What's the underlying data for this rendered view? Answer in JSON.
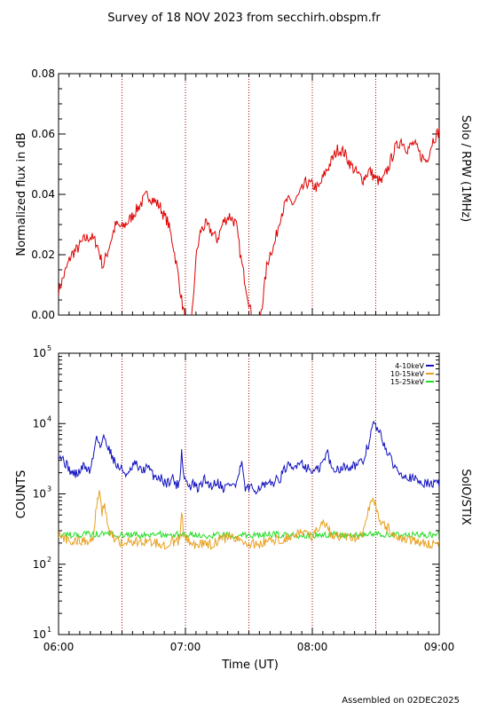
{
  "header": {
    "title": "Survey of 18 NOV 2023 from secchirh.obspm.fr"
  },
  "footer": {
    "assembled": "Assembled on 02DEC2025"
  },
  "colors": {
    "rpw": "#dd0000",
    "ch1": "#1010c0",
    "ch2": "#e8a020",
    "ch3": "#22dd22",
    "dotted": "#aa0000"
  },
  "chart_data": [
    {
      "type": "line",
      "ylabel": "Normalized flux in dB",
      "right_label": "Solo / RPW (1MHz)",
      "ylim": [
        0,
        0.08
      ],
      "y_ticks": [
        "0.00",
        "0.02",
        "0.04",
        "0.06",
        "0.08"
      ],
      "y_tick_values": [
        0,
        0.02,
        0.04,
        0.06,
        0.08
      ],
      "xlim_hours": [
        6.0,
        9.0
      ],
      "dotted_lines_hours": [
        6.5,
        7.0,
        7.5,
        8.0,
        8.5
      ],
      "series": [
        {
          "color": "#dd0000",
          "x": [
            6.0,
            6.05,
            6.1,
            6.15,
            6.2,
            6.25,
            6.3,
            6.35,
            6.4,
            6.45,
            6.5,
            6.55,
            6.6,
            6.65,
            6.7,
            6.75,
            6.8,
            6.83,
            6.86,
            6.9,
            6.94,
            6.97,
            7.0,
            7.02,
            7.04,
            7.06,
            7.08,
            7.12,
            7.16,
            7.2,
            7.25,
            7.3,
            7.35,
            7.4,
            7.44,
            7.48,
            7.52,
            7.55,
            7.58,
            7.61,
            7.64,
            7.67,
            7.7,
            7.75,
            7.8,
            7.85,
            7.9,
            7.95,
            8.0,
            8.05,
            8.1,
            8.15,
            8.2,
            8.25,
            8.3,
            8.35,
            8.4,
            8.45,
            8.5,
            8.55,
            8.6,
            8.65,
            8.7,
            8.75,
            8.8,
            8.85,
            8.9,
            8.95,
            9.0
          ],
          "y": [
            0.008,
            0.014,
            0.02,
            0.022,
            0.025,
            0.026,
            0.024,
            0.016,
            0.023,
            0.03,
            0.029,
            0.031,
            0.034,
            0.037,
            0.04,
            0.038,
            0.036,
            0.033,
            0.031,
            0.024,
            0.014,
            0.005,
            -0.002,
            -0.004,
            -0.002,
            0.003,
            0.018,
            0.028,
            0.03,
            0.028,
            0.025,
            0.031,
            0.033,
            0.03,
            0.018,
            0.009,
            0.0,
            -0.003,
            -0.002,
            0.005,
            0.016,
            0.021,
            0.023,
            0.033,
            0.038,
            0.037,
            0.04,
            0.044,
            0.043,
            0.042,
            0.047,
            0.051,
            0.055,
            0.054,
            0.05,
            0.047,
            0.045,
            0.048,
            0.045,
            0.044,
            0.049,
            0.055,
            0.058,
            0.055,
            0.057,
            0.053,
            0.051,
            0.058,
            0.061
          ]
        }
      ]
    },
    {
      "type": "line",
      "ylabel": "COUNTS",
      "right_label": "SolO/STIX",
      "xlabel": "Time (UT)",
      "yscale": "log",
      "ylim": [
        10,
        100000
      ],
      "y_ticks": [
        {
          "base": "10",
          "exp": "1"
        },
        {
          "base": "10",
          "exp": "2"
        },
        {
          "base": "10",
          "exp": "3"
        },
        {
          "base": "10",
          "exp": "4"
        },
        {
          "base": "10",
          "exp": "5"
        }
      ],
      "y_tick_values": [
        10,
        100,
        1000,
        10000,
        100000
      ],
      "x_ticks": [
        "06:00",
        "07:00",
        "08:00",
        "09:00"
      ],
      "x_tick_hours": [
        6,
        7,
        8,
        9
      ],
      "xlim_hours": [
        6.0,
        9.0
      ],
      "dotted_lines_hours": [
        6.5,
        7.0,
        7.5,
        8.0,
        8.5
      ],
      "legend_position": "top-right",
      "series": [
        {
          "name": "4-10keV",
          "color": "#1010c0",
          "x": [
            6.0,
            6.05,
            6.1,
            6.15,
            6.2,
            6.25,
            6.28,
            6.3,
            6.33,
            6.36,
            6.4,
            6.45,
            6.5,
            6.55,
            6.6,
            6.65,
            6.7,
            6.75,
            6.8,
            6.85,
            6.9,
            6.93,
            6.96,
            6.97,
            6.98,
            7.0,
            7.03,
            7.06,
            7.1,
            7.15,
            7.2,
            7.25,
            7.3,
            7.35,
            7.4,
            7.45,
            7.46,
            7.47,
            7.5,
            7.55,
            7.6,
            7.65,
            7.7,
            7.75,
            7.8,
            7.85,
            7.9,
            7.95,
            8.0,
            8.05,
            8.1,
            8.12,
            8.15,
            8.2,
            8.25,
            8.3,
            8.35,
            8.4,
            8.45,
            8.48,
            8.5,
            8.55,
            8.6,
            8.65,
            8.7,
            8.75,
            8.8,
            8.85,
            8.9,
            8.95,
            9.0
          ],
          "y": [
            3800,
            2800,
            2000,
            1900,
            2500,
            2100,
            3800,
            7000,
            4500,
            6500,
            4200,
            2600,
            2200,
            1800,
            2700,
            2100,
            2400,
            1800,
            1700,
            1400,
            1700,
            1300,
            1600,
            4800,
            2000,
            1600,
            1200,
            1400,
            1150,
            1600,
            1300,
            1500,
            1200,
            1400,
            1300,
            2700,
            1400,
            1200,
            1200,
            1150,
            1300,
            1300,
            1500,
            1700,
            2500,
            2200,
            3000,
            2400,
            2100,
            2200,
            3200,
            4000,
            2200,
            2300,
            2400,
            2500,
            2600,
            2800,
            5500,
            10000,
            9000,
            6000,
            3500,
            2400,
            2000,
            1800,
            1600,
            1500,
            1400,
            1400,
            1400
          ]
        },
        {
          "name": "10-15keV",
          "color": "#e8a020",
          "x": [
            6.0,
            6.05,
            6.1,
            6.15,
            6.2,
            6.25,
            6.28,
            6.3,
            6.32,
            6.34,
            6.36,
            6.38,
            6.4,
            6.45,
            6.5,
            6.55,
            6.6,
            6.65,
            6.7,
            6.75,
            6.8,
            6.85,
            6.9,
            6.93,
            6.96,
            6.97,
            6.98,
            7.0,
            7.05,
            7.1,
            7.15,
            7.2,
            7.25,
            7.3,
            7.35,
            7.4,
            7.45,
            7.5,
            7.55,
            7.6,
            7.65,
            7.7,
            7.75,
            7.8,
            7.85,
            7.9,
            7.95,
            8.0,
            8.05,
            8.1,
            8.15,
            8.2,
            8.25,
            8.3,
            8.35,
            8.4,
            8.43,
            8.46,
            8.48,
            8.5,
            8.52,
            8.55,
            8.6,
            8.65,
            8.7,
            8.75,
            8.8,
            8.85,
            8.9,
            8.95,
            9.0
          ],
          "y": [
            280,
            230,
            200,
            210,
            220,
            210,
            260,
            700,
            1050,
            500,
            800,
            420,
            300,
            220,
            200,
            210,
            200,
            220,
            210,
            200,
            200,
            190,
            210,
            200,
            230,
            600,
            300,
            230,
            200,
            180,
            200,
            190,
            210,
            230,
            250,
            220,
            210,
            200,
            190,
            200,
            210,
            220,
            230,
            240,
            250,
            280,
            300,
            250,
            320,
            380,
            260,
            250,
            240,
            230,
            240,
            280,
            500,
            750,
            850,
            700,
            500,
            380,
            320,
            260,
            230,
            220,
            210,
            200,
            200,
            195,
            190
          ]
        },
        {
          "name": "15-25keV",
          "color": "#22dd22",
          "x": [
            6.0,
            6.1,
            6.2,
            6.3,
            6.4,
            6.5,
            6.6,
            6.7,
            6.8,
            6.9,
            7.0,
            7.1,
            7.2,
            7.3,
            7.4,
            7.5,
            7.6,
            7.7,
            7.8,
            7.9,
            8.0,
            8.1,
            8.2,
            8.3,
            8.4,
            8.5,
            8.6,
            8.7,
            8.8,
            8.9,
            9.0
          ],
          "y": [
            270,
            260,
            265,
            270,
            275,
            260,
            260,
            255,
            265,
            260,
            270,
            260,
            255,
            265,
            260,
            255,
            260,
            265,
            260,
            260,
            255,
            260,
            265,
            260,
            265,
            270,
            262,
            258,
            260,
            262,
            265
          ]
        }
      ]
    }
  ]
}
